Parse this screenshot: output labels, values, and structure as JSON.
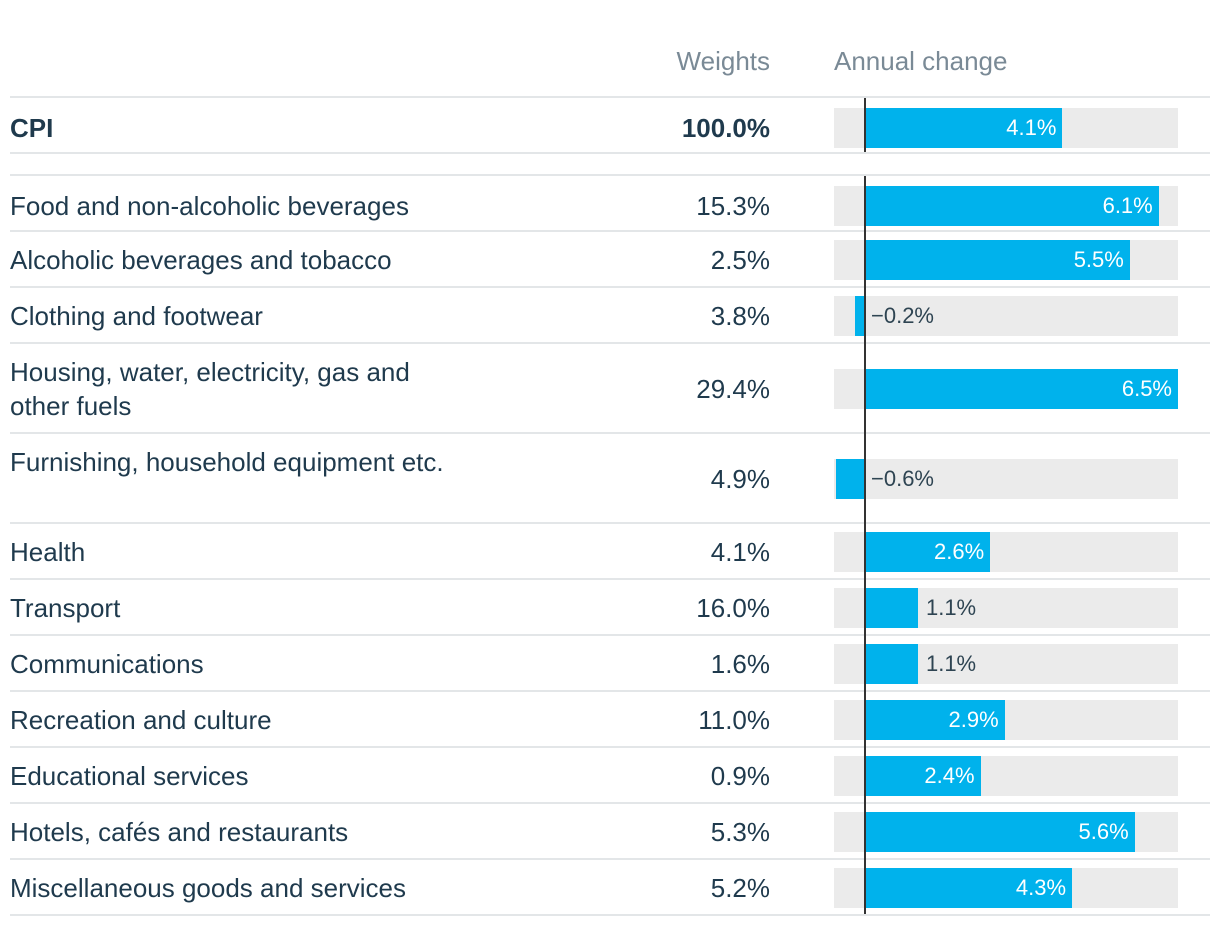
{
  "headers": {
    "weights": "Weights",
    "annual_change": "Annual change"
  },
  "colors": {
    "bar": "#00b2ec",
    "track": "#ebebeb",
    "text": "#1f3a4d",
    "header": "#7a8a96"
  },
  "chart_data": {
    "type": "bar",
    "orientation": "horizontal",
    "title": "",
    "xlabel": "Annual change",
    "xlim": [
      -1.0,
      6.5
    ],
    "categories": [
      "CPI",
      "Food and non-alcoholic beverages",
      "Alcoholic beverages and tobacco",
      "Clothing and footwear",
      "Housing, water, electricity, gas and other fuels",
      "Furnishing, household equipment etc.",
      "Health",
      "Transport",
      "Communications",
      "Recreation and culture",
      "Educational services",
      "Hotels, cafés and restaurants",
      "Miscellaneous goods and services"
    ],
    "weights": [
      "100.0%",
      "15.3%",
      "2.5%",
      "3.8%",
      "29.4%",
      "4.9%",
      "4.1%",
      "16.0%",
      "1.6%",
      "11.0%",
      "0.9%",
      "5.3%",
      "5.2%"
    ],
    "values": [
      4.1,
      6.1,
      5.5,
      -0.2,
      6.5,
      -0.6,
      2.6,
      1.1,
      1.1,
      2.9,
      2.4,
      5.6,
      4.3
    ],
    "value_labels": [
      "4.1%",
      "6.1%",
      "5.5%",
      "−0.2%",
      "6.5%",
      "−0.6%",
      "2.6%",
      "1.1%",
      "1.1%",
      "2.9%",
      "2.4%",
      "5.6%",
      "4.3%"
    ]
  }
}
